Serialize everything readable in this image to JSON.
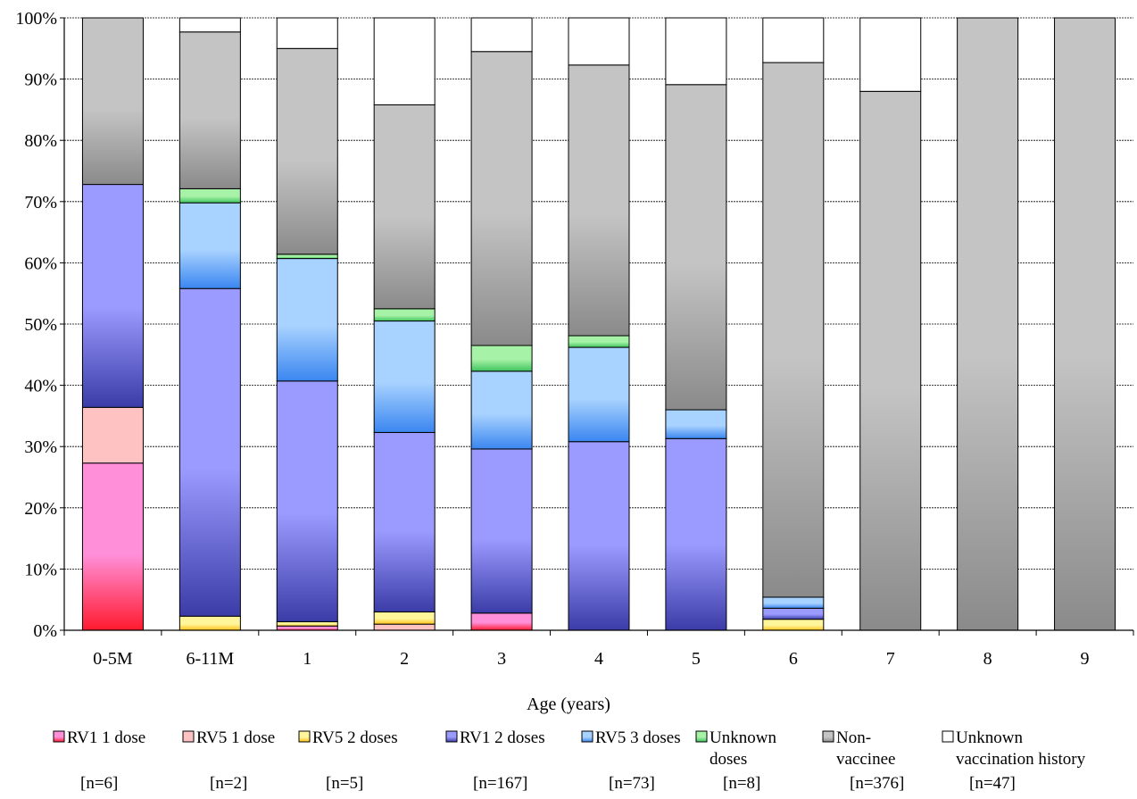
{
  "chart_data": {
    "type": "bar",
    "stacked": true,
    "percent": true,
    "xlabel": "Age (years)",
    "ylabel": "",
    "ylim": [
      0,
      100
    ],
    "yticks": [
      "0%",
      "10%",
      "20%",
      "30%",
      "40%",
      "50%",
      "60%",
      "70%",
      "80%",
      "90%",
      "100%"
    ],
    "grid": true,
    "legend_position": "bottom",
    "categories": [
      "0-5M",
      "6-11M",
      "1",
      "2",
      "3",
      "4",
      "5",
      "6",
      "7",
      "8",
      "9"
    ],
    "series": [
      {
        "name": "RV1 1 dose",
        "n_label": "[n=6]",
        "values": [
          27.3,
          0,
          0.7,
          0,
          2.8,
          0,
          0,
          0,
          0,
          0,
          0
        ]
      },
      {
        "name": "RV5 1 dose",
        "n_label": "[n=2]",
        "values": [
          9.1,
          0,
          0,
          1.0,
          0,
          0,
          0,
          0,
          0,
          0,
          0
        ]
      },
      {
        "name": "RV5 2 doses",
        "n_label": "[n=5]",
        "values": [
          0,
          2.3,
          0.7,
          2.0,
          0,
          0,
          0,
          1.8,
          0,
          0,
          0
        ]
      },
      {
        "name": "RV1 2 doses",
        "n_label": "[n=167]",
        "values": [
          36.4,
          53.5,
          39.3,
          29.3,
          26.8,
          30.8,
          31.3,
          1.8,
          0,
          0,
          0
        ]
      },
      {
        "name": "RV5 3 doses",
        "n_label": "[n=73]",
        "values": [
          0,
          14.0,
          20.0,
          18.2,
          12.7,
          15.4,
          4.7,
          1.8,
          0,
          0,
          0
        ]
      },
      {
        "name": "Unknown doses",
        "n_label": "[n=8]",
        "values": [
          0,
          2.3,
          0.7,
          2.0,
          4.2,
          1.9,
          0,
          0,
          0,
          0,
          0
        ]
      },
      {
        "name": "Non-vaccinee",
        "n_label": "[n=376]",
        "values": [
          27.2,
          25.6,
          33.6,
          33.3,
          48.0,
          44.2,
          53.1,
          87.3,
          88.0,
          100,
          100
        ]
      },
      {
        "name": "Unknown vaccination history",
        "n_label": "[n=47]",
        "values": [
          0,
          2.3,
          5.0,
          14.2,
          5.5,
          7.7,
          10.9,
          7.3,
          12.0,
          0,
          0
        ]
      }
    ],
    "legend_label_lines": [
      [
        "RV1 1 dose"
      ],
      [
        "RV5 1 dose"
      ],
      [
        "RV5 2 doses"
      ],
      [
        "RV1 2 doses"
      ],
      [
        "RV5 3 doses"
      ],
      [
        "Unknown",
        "doses"
      ],
      [
        "Non-",
        "vaccinee"
      ],
      [
        "Unknown",
        "vaccination history"
      ]
    ],
    "colors": {
      "RV1 1 dose": {
        "top": "#ff8fd8",
        "edge": "#ff1a2e"
      },
      "RV5 1 dose": {
        "top": "#ffc2c2",
        "edge": "#ffc2c2"
      },
      "RV5 2 doses": {
        "top": "#fff59a",
        "edge": "#ffc21a"
      },
      "RV1 2 doses": {
        "top": "#9a9aff",
        "edge": "#3c3ca8"
      },
      "RV5 3 doses": {
        "top": "#a8d2ff",
        "edge": "#3a86f0"
      },
      "Unknown doses": {
        "top": "#a6f2a6",
        "edge": "#3ec45e"
      },
      "Non-vaccinee": {
        "top": "#c4c4c4",
        "edge": "#8a8a8a"
      },
      "Unknown vaccination history": {
        "top": "#ffffff",
        "edge": "#ffffff"
      }
    }
  }
}
